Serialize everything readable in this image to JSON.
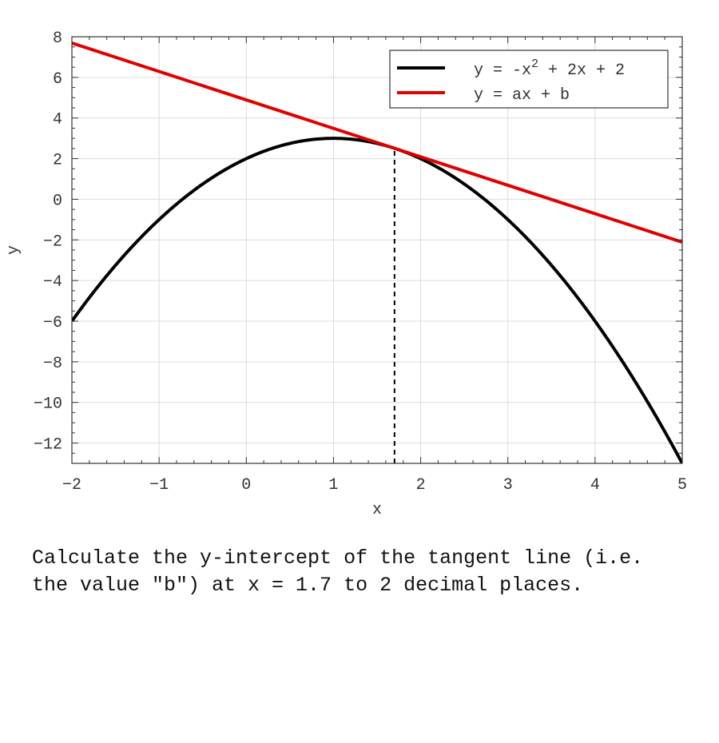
{
  "chart_data": {
    "type": "line",
    "title": "",
    "xlabel": "x",
    "ylabel": "y",
    "xlim": [
      -2,
      5
    ],
    "ylim": [
      -13,
      8
    ],
    "xticks": [
      -2,
      -1,
      0,
      1,
      2,
      3,
      4,
      5
    ],
    "yticks": [
      -12,
      -10,
      -8,
      -6,
      -4,
      -2,
      0,
      2,
      4,
      6,
      8
    ],
    "grid": true,
    "legend_position": "top-right",
    "series": [
      {
        "name": "y = -x^2 + 2x + 2",
        "legend_main": "y = -x",
        "legend_sup": "2",
        "legend_tail": " + 2x + 2",
        "expression": "-x^2 + 2x + 2",
        "coefficients": [
          -1,
          2,
          2
        ],
        "color": "#000000"
      },
      {
        "name": "y = ax + b",
        "legend_main": "y = ax + b",
        "expression": "tangent at x = 1.7",
        "slope": -1.4,
        "intercept": 4.89,
        "color": "#e00000"
      }
    ],
    "reference_line": {
      "x": 1.7,
      "y_from": -13,
      "y_to": 2.51,
      "style": "dashed",
      "color": "#000000"
    }
  },
  "question": {
    "text": "Calculate the y-intercept of the tangent line (i.e. the value \"b\") at x = 1.7 to 2 decimal places."
  }
}
